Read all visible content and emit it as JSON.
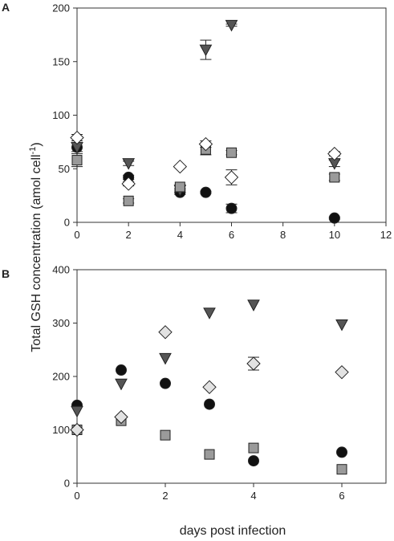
{
  "figure": {
    "ylabel_main": "Total GSH concentration (amol cell",
    "ylabel_sup": "-1",
    "ylabel_close": ")",
    "xlabel": "days post infection"
  },
  "colors": {
    "black": "#111111",
    "dark_gray": "#555555",
    "mid_gray": "#9a9a9a",
    "light_gray": "#e2e2e2",
    "white": "#ffffff",
    "axis": "#333333"
  },
  "chart_data": [
    {
      "panel": "A",
      "type": "scatter",
      "xlim": [
        0,
        12
      ],
      "ylim": [
        0,
        200
      ],
      "xticks": [
        "0",
        "2",
        "4",
        "6",
        "8",
        "10",
        "12"
      ],
      "yticks": [
        "0",
        "50",
        "100",
        "150",
        "200"
      ],
      "grid": false,
      "series": [
        {
          "marker": "circle",
          "fill": "#111111",
          "points": [
            [
              0,
              70
            ],
            [
              2,
              42
            ],
            [
              4,
              28
            ],
            [
              5,
              28
            ],
            [
              6,
              13
            ],
            [
              10,
              4
            ]
          ],
          "errors": [
            0,
            2,
            2,
            1,
            4,
            1
          ]
        },
        {
          "marker": "triangle-down",
          "fill": "#555555",
          "points": [
            [
              0,
              70
            ],
            [
              2,
              55
            ],
            [
              4,
              30
            ],
            [
              5,
              161
            ],
            [
              6,
              184
            ],
            [
              10,
              55
            ]
          ],
          "errors": [
            4,
            2,
            2,
            9,
            1,
            3
          ]
        },
        {
          "marker": "square",
          "fill": "#9a9a9a",
          "points": [
            [
              0,
              58
            ],
            [
              2,
              20
            ],
            [
              4,
              33
            ],
            [
              5,
              68
            ],
            [
              6,
              65
            ],
            [
              10,
              42
            ]
          ],
          "errors": [
            6,
            2,
            2,
            5,
            2,
            3
          ]
        },
        {
          "marker": "diamond",
          "fill": "#ffffff",
          "points": [
            [
              0,
              79
            ],
            [
              2,
              36
            ],
            [
              4,
              52
            ],
            [
              5,
              73
            ],
            [
              6,
              42
            ],
            [
              10,
              64
            ]
          ],
          "errors": [
            3,
            2,
            1,
            3,
            7,
            2
          ]
        }
      ]
    },
    {
      "panel": "B",
      "type": "scatter",
      "xlim": [
        0,
        7
      ],
      "ylim": [
        0,
        400
      ],
      "xticks": [
        "0",
        "2",
        "4",
        "6"
      ],
      "yticks": [
        "0",
        "100",
        "200",
        "300",
        "400"
      ],
      "grid": false,
      "series": [
        {
          "marker": "circle",
          "fill": "#111111",
          "points": [
            [
              0,
              146
            ],
            [
              1,
              212
            ],
            [
              2,
              187
            ],
            [
              3,
              148
            ],
            [
              4,
              42
            ],
            [
              6,
              58
            ]
          ],
          "errors": [
            0,
            0,
            0,
            0,
            0,
            0
          ]
        },
        {
          "marker": "triangle-down",
          "fill": "#555555",
          "points": [
            [
              0,
              135
            ],
            [
              1,
              186
            ],
            [
              2,
              234
            ],
            [
              3,
              319
            ],
            [
              4,
              334
            ],
            [
              6,
              297
            ]
          ],
          "errors": [
            0,
            0,
            0,
            0,
            0,
            0
          ]
        },
        {
          "marker": "square",
          "fill": "#9a9a9a",
          "points": [
            [
              0,
              100
            ],
            [
              1,
              117
            ],
            [
              2,
              90
            ],
            [
              3,
              54
            ],
            [
              4,
              66
            ],
            [
              6,
              26
            ]
          ],
          "errors": [
            0,
            0,
            0,
            0,
            0,
            0
          ]
        },
        {
          "marker": "diamond",
          "fill": "#e2e2e2",
          "points": [
            [
              0,
              100
            ],
            [
              1,
              124
            ],
            [
              2,
              283
            ],
            [
              3,
              180
            ],
            [
              4,
              224
            ],
            [
              6,
              208
            ]
          ],
          "errors": [
            0,
            0,
            0,
            0,
            12,
            0
          ]
        }
      ]
    }
  ]
}
